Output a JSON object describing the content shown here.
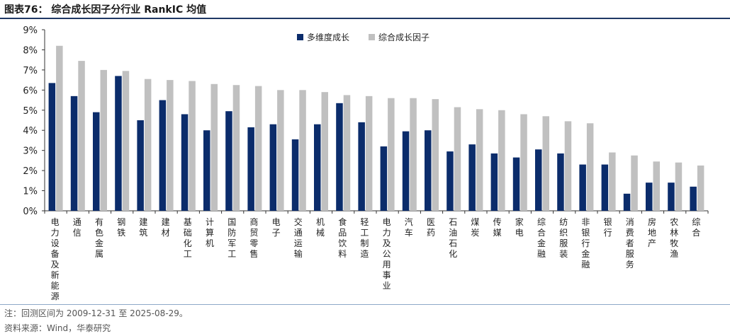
{
  "figure": {
    "title": "图表76：  综合成长因子分行业 RankIC 均值",
    "note": "注：回测区间为 2009-12-31 至 2025-08-29。",
    "source": "资料来源：Wind，华泰研究"
  },
  "chart_data": {
    "type": "bar",
    "title": "",
    "xlabel": "",
    "ylabel": "",
    "ylim": [
      0,
      9
    ],
    "yticks": [
      "0%",
      "1%",
      "2%",
      "3%",
      "4%",
      "5%",
      "6%",
      "7%",
      "8%",
      "9%"
    ],
    "grid": false,
    "legend_position": "top-right",
    "categories": [
      "电力设备及新能源",
      "通信",
      "有色金属",
      "钢铁",
      "建筑",
      "建材",
      "基础化工",
      "计算机",
      "国防军工",
      "商贸零售",
      "电子",
      "交通运输",
      "机械",
      "食品饮料",
      "轻工制造",
      "电力及公用事业",
      "汽车",
      "医药",
      "石油石化",
      "煤炭",
      "传媒",
      "家电",
      "综合金融",
      "纺织服装",
      "非银行金融",
      "银行",
      "消费者服务",
      "房地产",
      "农林牧渔",
      "综合"
    ],
    "series": [
      {
        "name": "多维度成长",
        "color": "#0b2c6b",
        "values": [
          6.35,
          5.7,
          4.9,
          6.7,
          4.5,
          5.5,
          4.8,
          4.0,
          4.95,
          4.15,
          4.3,
          3.55,
          4.3,
          5.35,
          4.4,
          3.2,
          3.95,
          4.0,
          2.95,
          3.3,
          2.85,
          2.65,
          3.05,
          2.85,
          2.3,
          2.3,
          0.85,
          1.4,
          1.4,
          1.2
        ]
      },
      {
        "name": "综合成长因子",
        "color": "#c0c0c0",
        "values": [
          8.2,
          7.45,
          7.0,
          6.95,
          6.55,
          6.5,
          6.45,
          6.3,
          6.25,
          6.2,
          6.0,
          6.0,
          5.9,
          5.75,
          5.7,
          5.6,
          5.6,
          5.55,
          5.15,
          5.05,
          5.0,
          4.8,
          4.7,
          4.45,
          4.35,
          2.9,
          2.75,
          2.45,
          2.4,
          2.25
        ]
      }
    ]
  }
}
